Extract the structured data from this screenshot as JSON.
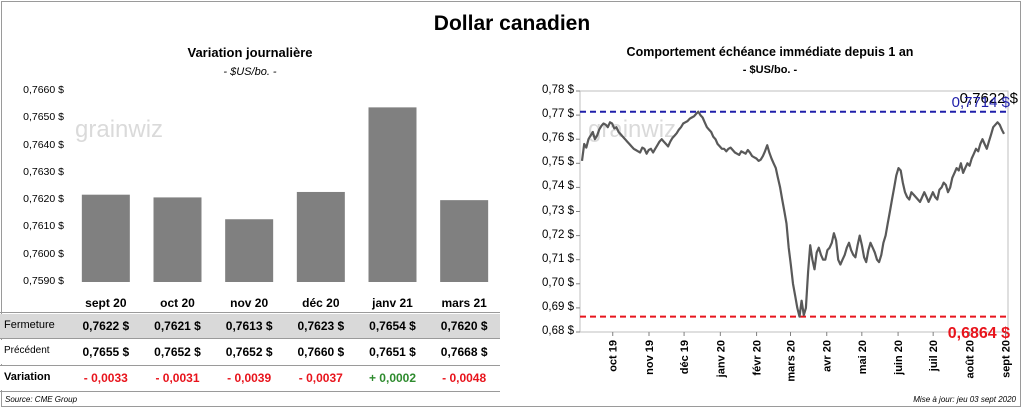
{
  "title": "Dollar canadien",
  "left_chart": {
    "title": "Variation  journalière",
    "subtitle": "- $US/bo. -",
    "watermark": "grainwiz",
    "y_ticks": [
      "0,7660 $",
      "0,7650 $",
      "0,7640 $",
      "0,7630 $",
      "0,7620 $",
      "0,7610 $",
      "0,7600 $",
      "0,7590 $"
    ]
  },
  "table": {
    "headers": [
      "sept 20",
      "oct 20",
      "nov 20",
      "déc 20",
      "janv 21",
      "mars 21"
    ],
    "rows": [
      {
        "label": "Fermeture",
        "cells": [
          "0,7622  $",
          "0,7621  $",
          "0,7613  $",
          "0,7623  $",
          "0,7654  $",
          "0,7620  $"
        ]
      },
      {
        "label": "Précédent",
        "cells": [
          "0,7655  $",
          "0,7652  $",
          "0,7652  $",
          "0,7660  $",
          "0,7651  $",
          "0,7668  $"
        ]
      },
      {
        "label": "Variation",
        "cells": [
          "- 0,0033",
          "- 0,0031",
          "- 0,0039",
          "- 0,0037",
          "+ 0,0002",
          "- 0,0048"
        ]
      }
    ]
  },
  "right_chart": {
    "title": "Comportement échéance immédiate depuis 1 an",
    "subtitle": "- $US/bo. -",
    "watermark": "grainwiz",
    "y_ticks": [
      "0,78 $",
      "0,77 $",
      "0,76 $",
      "0,75 $",
      "0,74 $",
      "0,73 $",
      "0,72 $",
      "0,71 $",
      "0,70 $",
      "0,69 $",
      "0,68 $"
    ],
    "x_ticks": [
      "oct 19",
      "nov 19",
      "déc 19",
      "janv 20",
      "févr 20",
      "mars 20",
      "avr 20",
      "mai 20",
      "juin 20",
      "juil 20",
      "août 20",
      "sept 20"
    ],
    "last_label": "0,7622 $",
    "high_label": "0,7714 $",
    "low_label": "0,6864 $"
  },
  "footer": {
    "source": "Source: CME Group",
    "update": "Mise à jour: jeu 03 sept 2020"
  },
  "colors": {
    "bar": "#808080",
    "line": "#595959",
    "high": "#1f1faa",
    "low": "#e8141c",
    "positive": "#2e8b2e",
    "negative": "#e8141c"
  },
  "chart_data": [
    {
      "type": "bar",
      "title": "Variation  journalière",
      "subtitle": "- $US/bo. -",
      "categories": [
        "sept 20",
        "oct 20",
        "nov 20",
        "déc 20",
        "janv 21",
        "mars 21"
      ],
      "values": [
        0.7622,
        0.7621,
        0.7613,
        0.7623,
        0.7654,
        0.762
      ],
      "ylim": [
        0.759,
        0.766
      ],
      "grid": false
    },
    {
      "type": "line",
      "title": "Comportement échéance immédiate depuis 1 an",
      "subtitle": "- $US/bo. -",
      "x_start": "2019-09-03",
      "x_end": "2020-09-03",
      "x_ticks": [
        "oct 19",
        "nov 19",
        "déc 19",
        "janv 20",
        "févr 20",
        "mars 20",
        "avr 20",
        "mai 20",
        "juin 20",
        "juil 20",
        "août 20",
        "sept 20"
      ],
      "ylim": [
        0.68,
        0.78
      ],
      "series": [
        {
          "values": [
            0.751,
            0.758,
            0.7565,
            0.76,
            0.7615,
            0.763,
            0.76,
            0.7615,
            0.764,
            0.7655,
            0.7665,
            0.766,
            0.765,
            0.767,
            0.7665,
            0.7645,
            0.765,
            0.763,
            0.762,
            0.761,
            0.76,
            0.759,
            0.758,
            0.757,
            0.756,
            0.7555,
            0.755,
            0.7545,
            0.7565,
            0.756,
            0.754,
            0.7555,
            0.756,
            0.7545,
            0.756,
            0.7575,
            0.759,
            0.76,
            0.759,
            0.758,
            0.757,
            0.759,
            0.7605,
            0.7615,
            0.7625,
            0.764,
            0.765,
            0.7665,
            0.767,
            0.7675,
            0.7685,
            0.769,
            0.7695,
            0.7705,
            0.7714,
            0.77,
            0.769,
            0.767,
            0.765,
            0.764,
            0.763,
            0.761,
            0.76,
            0.758,
            0.757,
            0.756,
            0.756,
            0.755,
            0.756,
            0.7565,
            0.7555,
            0.7545,
            0.754,
            0.7535,
            0.755,
            0.7545,
            0.754,
            0.7555,
            0.7545,
            0.753,
            0.7525,
            0.752,
            0.751,
            0.7515,
            0.753,
            0.755,
            0.7575,
            0.7545,
            0.752,
            0.75,
            0.748,
            0.744,
            0.74,
            0.735,
            0.73,
            0.725,
            0.715,
            0.708,
            0.7,
            0.695,
            0.69,
            0.6864,
            0.693,
            0.687,
            0.69,
            0.705,
            0.716,
            0.71,
            0.706,
            0.713,
            0.715,
            0.712,
            0.71,
            0.71,
            0.714,
            0.715,
            0.717,
            0.721,
            0.718,
            0.71,
            0.708,
            0.71,
            0.712,
            0.715,
            0.717,
            0.714,
            0.712,
            0.711,
            0.716,
            0.72,
            0.716,
            0.711,
            0.709,
            0.714,
            0.717,
            0.715,
            0.713,
            0.71,
            0.709,
            0.712,
            0.717,
            0.72,
            0.725,
            0.73,
            0.735,
            0.74,
            0.745,
            0.748,
            0.747,
            0.742,
            0.738,
            0.736,
            0.735,
            0.738,
            0.737,
            0.736,
            0.735,
            0.734,
            0.736,
            0.738,
            0.736,
            0.734,
            0.736,
            0.738,
            0.736,
            0.735,
            0.739,
            0.74,
            0.742,
            0.741,
            0.738,
            0.74,
            0.744,
            0.746,
            0.748,
            0.747,
            0.75,
            0.746,
            0.748,
            0.75,
            0.749,
            0.752,
            0.754,
            0.756,
            0.755,
            0.758,
            0.76,
            0.758,
            0.756,
            0.759,
            0.762,
            0.765,
            0.766,
            0.767,
            0.766,
            0.764,
            0.7622
          ]
        }
      ],
      "reference_lines": [
        {
          "label": "0,7714 $",
          "value": 0.7714,
          "style": "dashed",
          "color": "#1f1faa"
        },
        {
          "label": "0,6864 $",
          "value": 0.6864,
          "style": "dashed",
          "color": "#e8141c"
        }
      ]
    }
  ]
}
